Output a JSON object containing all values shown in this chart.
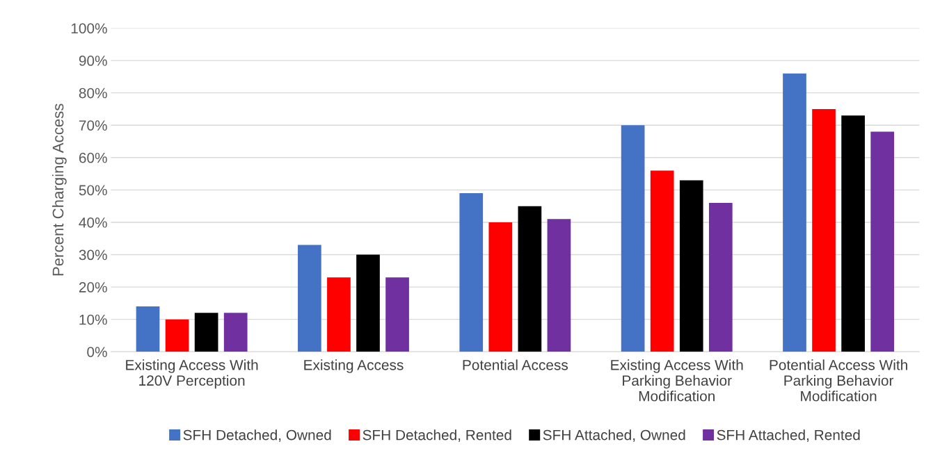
{
  "chart_data": {
    "type": "bar",
    "ylabel": "Percent Charging Access",
    "categories": [
      "Existing Access With 120V Perception",
      "Existing Access",
      "Potential Access",
      "Existing Access With Parking Behavior Modification",
      "Potential Access With Parking Behavior Modification"
    ],
    "series": [
      {
        "name": "SFH Detached, Owned",
        "color": "#4472c4",
        "values": [
          14,
          33,
          49,
          70,
          86
        ]
      },
      {
        "name": "SFH Detached, Rented",
        "color": "#ff0000",
        "values": [
          10,
          23,
          40,
          56,
          75
        ]
      },
      {
        "name": "SFH Attached, Owned",
        "color": "#000000",
        "values": [
          12,
          30,
          45,
          53,
          73
        ]
      },
      {
        "name": "SFH Attached, Rented",
        "color": "#7030a0",
        "values": [
          12,
          23,
          41,
          46,
          68
        ]
      }
    ],
    "ylim": [
      0,
      100
    ],
    "yticks": [
      {
        "value": 0,
        "label": "0%"
      },
      {
        "value": 10,
        "label": "10%"
      },
      {
        "value": 20,
        "label": "20%"
      },
      {
        "value": 30,
        "label": "30%"
      },
      {
        "value": 40,
        "label": "40%"
      },
      {
        "value": 50,
        "label": "50%"
      },
      {
        "value": 60,
        "label": "60%"
      },
      {
        "value": 70,
        "label": "70%"
      },
      {
        "value": 80,
        "label": "80%"
      },
      {
        "value": 90,
        "label": "90%"
      },
      {
        "value": 100,
        "label": "100%"
      }
    ],
    "grid": "y",
    "legend": "bottom"
  }
}
